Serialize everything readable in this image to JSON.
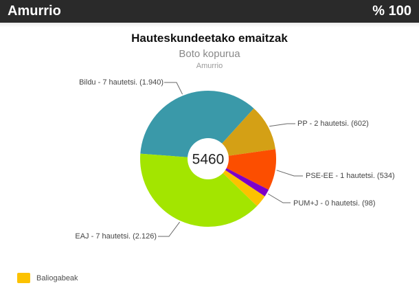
{
  "header": {
    "title": "Amurrio",
    "percent": "% 100"
  },
  "chart": {
    "title": "Hauteskundeetako emaitzak",
    "subtitle": "Boto kopurua",
    "location": "Amurrio"
  },
  "chart_data": {
    "type": "pie",
    "donut": true,
    "title": "Hauteskundeetako emaitzak",
    "subtitle": "Boto kopurua",
    "location": "Amurrio",
    "center_label": "5460",
    "total": 5460,
    "start_angle_deg": 274.3,
    "slices": [
      {
        "name": "Bildu",
        "label": "Bildu - 7 hautetsi. (1.940)",
        "seats": 7,
        "value": 1940,
        "color": "#3a99a9"
      },
      {
        "name": "PP",
        "label": "PP - 2 hautetsi. (602)",
        "seats": 2,
        "value": 602,
        "color": "#d4a015"
      },
      {
        "name": "PSE-EE",
        "label": "PSE-EE - 1 hautetsi. (534)",
        "seats": 1,
        "value": 534,
        "color": "#fc4e00"
      },
      {
        "name": "PUM+J",
        "label": "PUM+J - 0 hautetsi. (98)",
        "seats": 0,
        "value": 98,
        "color": "#7d00c8"
      },
      {
        "name": "Baliogabeak",
        "label": "",
        "value": 160,
        "color": "#fcc200"
      },
      {
        "name": "EAJ",
        "label": "EAJ - 7 hautetsi. (2.126)",
        "seats": 7,
        "value": 2126,
        "color": "#a3e500"
      }
    ],
    "legend": [
      {
        "label": "Baliogabeak",
        "color": "#fcc200"
      }
    ]
  }
}
